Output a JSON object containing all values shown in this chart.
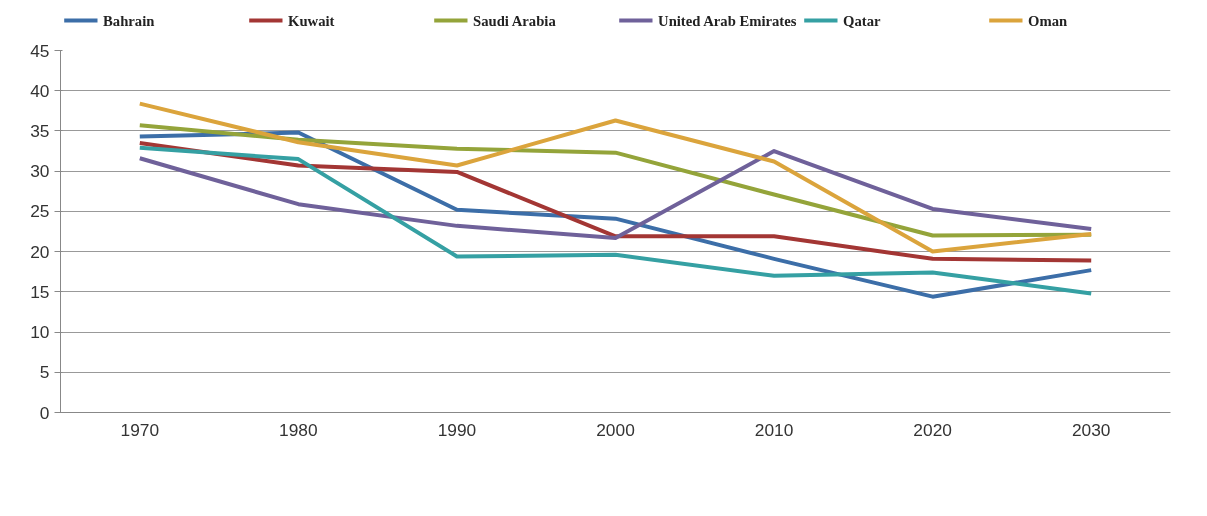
{
  "chart_data": {
    "type": "line",
    "categories": [
      "1970",
      "1980",
      "1990",
      "2000",
      "2010",
      "2020",
      "2030"
    ],
    "ylim": [
      0,
      45
    ],
    "yticks": [
      0,
      5,
      10,
      15,
      20,
      25,
      30,
      35,
      40,
      45
    ],
    "grid": "y",
    "legend": "top",
    "marker": "none",
    "line_style": "solid",
    "series": [
      {
        "name": "Bahrain",
        "color": "#3c6ea8",
        "values": [
          34.3,
          34.8,
          25.2,
          24.1,
          19.1,
          14.4,
          17.7
        ]
      },
      {
        "name": "Kuwait",
        "color": "#a33634",
        "values": [
          33.5,
          30.7,
          29.9,
          21.9,
          21.9,
          19.1,
          18.9
        ]
      },
      {
        "name": "Saudi Arabia",
        "color": "#94a43a",
        "values": [
          35.7,
          33.9,
          32.8,
          32.3,
          27.1,
          22.0,
          22.1
        ]
      },
      {
        "name": "United Arab Emirates",
        "color": "#6f619a",
        "values": [
          31.6,
          25.9,
          23.2,
          21.7,
          32.5,
          25.3,
          22.8
        ]
      },
      {
        "name": "Qatar",
        "color": "#35a0a3",
        "values": [
          32.9,
          31.5,
          19.4,
          19.6,
          17.0,
          17.4,
          14.8
        ]
      },
      {
        "name": "Oman",
        "color": "#dba43c",
        "values": [
          38.4,
          33.6,
          30.7,
          36.3,
          31.2,
          20.0,
          22.2
        ]
      }
    ]
  }
}
